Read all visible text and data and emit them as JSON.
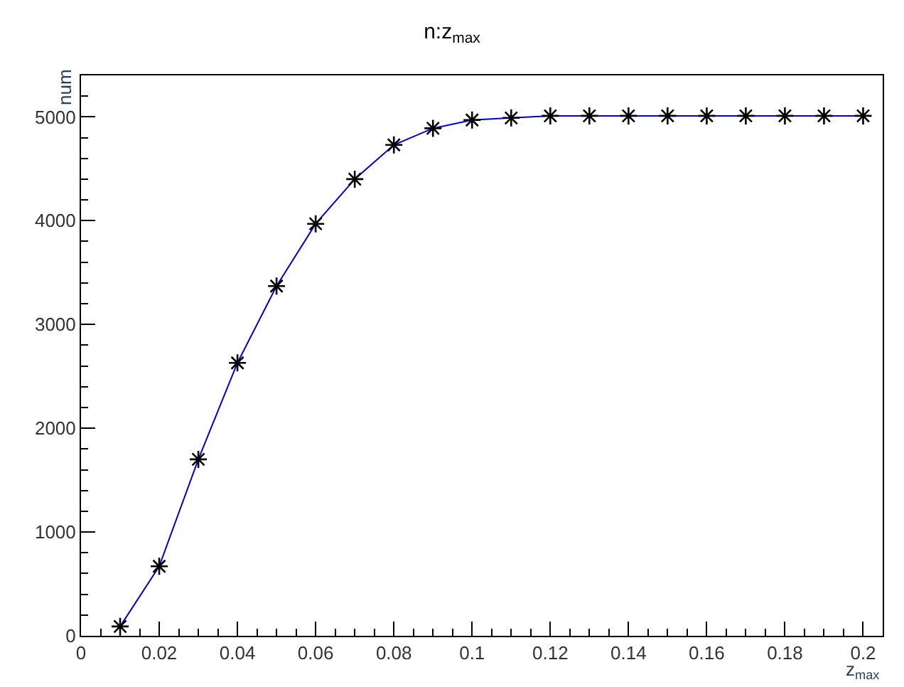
{
  "chart_data": {
    "type": "line",
    "title": "n:z$_{max}$",
    "xlabel": "z$_{max}$",
    "ylabel": "num",
    "x": [
      0.01,
      0.02,
      0.03,
      0.04,
      0.05,
      0.06,
      0.07,
      0.08,
      0.09,
      0.1,
      0.11,
      0.12,
      0.13,
      0.14,
      0.15,
      0.16,
      0.17,
      0.18,
      0.19,
      0.2
    ],
    "series": [
      {
        "color": "#0000cc",
        "marker": "none",
        "values": [
          90,
          670,
          1700,
          2630,
          3370,
          3970,
          4400,
          4730,
          4890,
          4970,
          4990,
          5010,
          5010,
          5010,
          5010,
          5010,
          5010,
          5010,
          5010,
          5010
        ]
      },
      {
        "type": "scatter",
        "color": "#000000",
        "marker": "cross",
        "values": [
          90,
          670,
          1700,
          2630,
          3370,
          3970,
          4400,
          4730,
          4890,
          4970,
          4990,
          5010,
          5010,
          5010,
          5010,
          5010,
          5010,
          5010,
          5010,
          5010
        ]
      }
    ],
    "xlim": [
      0,
      0.205
    ],
    "ylim": [
      0,
      5400
    ],
    "xticks": [
      0,
      0.02,
      0.04,
      0.06,
      0.08,
      0.1,
      0.12,
      0.14,
      0.16,
      0.18,
      0.2
    ],
    "yticks": [
      0,
      1000,
      2000,
      3000,
      4000,
      5000
    ]
  }
}
